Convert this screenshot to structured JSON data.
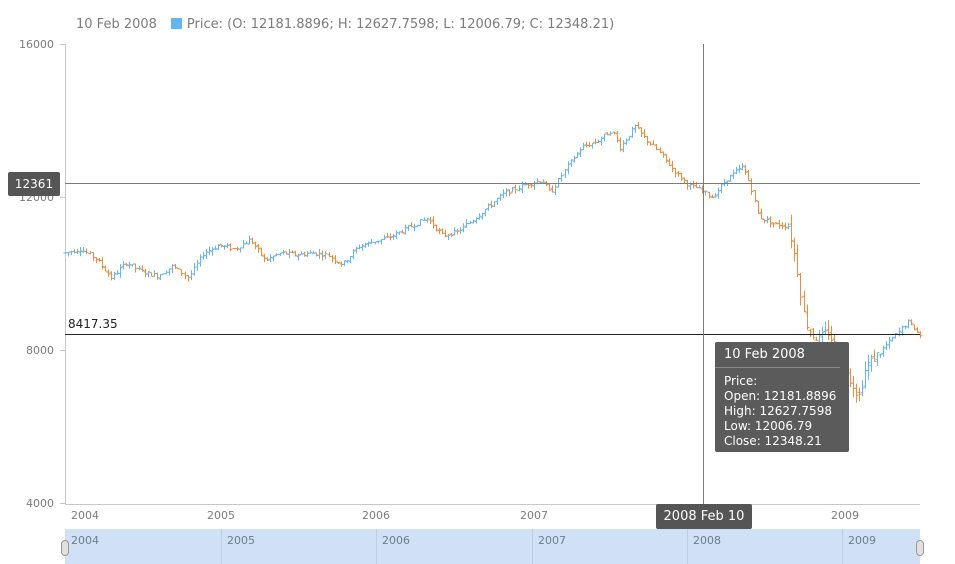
{
  "legend": {
    "date": "10 Feb 2008",
    "series_label": "Price:",
    "ohlc_text": "(O: 12181.8896; H: 12627.7598; L: 12006.79; C: 12348.21)",
    "swatch_color": "#64b5f6"
  },
  "crosshair": {
    "y_value": "12361",
    "x_value": "2008 Feb 10"
  },
  "horizontal_line": {
    "label": "8417.35",
    "value": 8417.35
  },
  "tooltip": {
    "title": "10 Feb 2008",
    "series": "Price:",
    "open": "Open: 12181.8896",
    "high": "High: 12627.7598",
    "low": "Low: 12006.79",
    "close": "Close: 12348.21"
  },
  "scroller": {
    "labels": [
      "2004",
      "2005",
      "2006",
      "2007",
      "2008",
      "2009"
    ]
  },
  "colors": {
    "rising": "#64b5f6",
    "falling": "#ef8c3b",
    "axis": "#c8c8c8",
    "crosshair": "#7a7a7a",
    "hline": "#222222"
  },
  "chart_data": {
    "type": "ohlc",
    "title": "",
    "ylim": [
      4000,
      16000
    ],
    "yticks": [
      "16000",
      "12000",
      "8000",
      "4000"
    ],
    "x_tick_labels": [
      "2004",
      "2005",
      "2006",
      "2007",
      "2008",
      "2009"
    ],
    "x_range": [
      2004.0,
      2009.55
    ],
    "grid": false,
    "anchors": [
      [
        2004.0,
        10550
      ],
      [
        2004.1,
        10650
      ],
      [
        2004.2,
        10400
      ],
      [
        2004.3,
        9900
      ],
      [
        2004.4,
        10300
      ],
      [
        2004.5,
        10050
      ],
      [
        2004.6,
        9950
      ],
      [
        2004.7,
        10200
      ],
      [
        2004.8,
        9900
      ],
      [
        2004.9,
        10550
      ],
      [
        2005.0,
        10750
      ],
      [
        2005.1,
        10650
      ],
      [
        2005.2,
        10900
      ],
      [
        2005.3,
        10350
      ],
      [
        2005.4,
        10550
      ],
      [
        2005.5,
        10500
      ],
      [
        2005.6,
        10550
      ],
      [
        2005.7,
        10500
      ],
      [
        2005.8,
        10250
      ],
      [
        2005.9,
        10700
      ],
      [
        2006.0,
        10850
      ],
      [
        2006.1,
        10950
      ],
      [
        2006.2,
        11150
      ],
      [
        2006.35,
        11450
      ],
      [
        2006.45,
        11000
      ],
      [
        2006.55,
        11100
      ],
      [
        2006.7,
        11600
      ],
      [
        2006.85,
        12100
      ],
      [
        2007.0,
        12350
      ],
      [
        2007.1,
        12450
      ],
      [
        2007.15,
        12100
      ],
      [
        2007.25,
        12750
      ],
      [
        2007.35,
        13300
      ],
      [
        2007.45,
        13450
      ],
      [
        2007.55,
        13750
      ],
      [
        2007.6,
        13300
      ],
      [
        2007.7,
        13850
      ],
      [
        2007.75,
        13600
      ],
      [
        2007.85,
        13200
      ],
      [
        2007.95,
        12700
      ],
      [
        2008.05,
        12300
      ],
      [
        2008.1,
        12250
      ],
      [
        2008.2,
        12000
      ],
      [
        2008.3,
        12500
      ],
      [
        2008.4,
        12800
      ],
      [
        2008.45,
        12300
      ],
      [
        2008.5,
        11500
      ],
      [
        2008.6,
        11300
      ],
      [
        2008.7,
        11250
      ],
      [
        2008.75,
        10200
      ],
      [
        2008.8,
        8800
      ],
      [
        2008.85,
        8400
      ],
      [
        2008.9,
        8300
      ],
      [
        2008.95,
        8500
      ],
      [
        2009.0,
        8100
      ],
      [
        2009.05,
        7700
      ],
      [
        2009.1,
        7200
      ],
      [
        2009.15,
        6800
      ],
      [
        2009.2,
        7600
      ],
      [
        2009.3,
        8000
      ],
      [
        2009.4,
        8450
      ],
      [
        2009.47,
        8750
      ],
      [
        2009.55,
        8400
      ]
    ]
  }
}
